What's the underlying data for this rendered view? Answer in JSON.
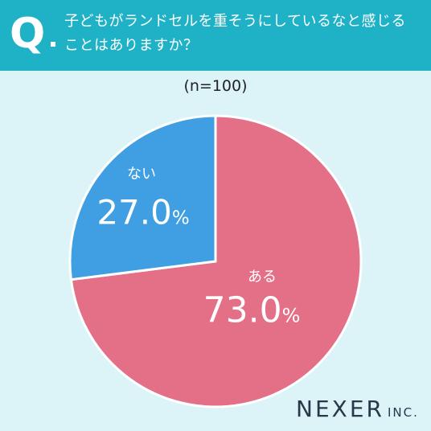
{
  "header": {
    "q_mark": "Q",
    "question_line1": "子どもがランドセルを重そうにしているなと感じる",
    "question_line2": "ことはありますか？"
  },
  "sample_label": "(n=100)",
  "colors": {
    "header_bg": "#1fb2c6",
    "page_bg": "#dcf3f8",
    "aru": "#e47088",
    "nai": "#3f9fe2"
  },
  "logo": {
    "main": "NEXER",
    "suffix": "INC."
  },
  "chart_data": {
    "type": "pie",
    "title": "子どもがランドセルを重そうにしているなと感じることはありますか？",
    "categories": [
      "ある",
      "ない"
    ],
    "values": [
      73.0,
      27.0
    ],
    "labels": [
      "73.0%",
      "27.0%"
    ],
    "unit": "%",
    "sample_size": "(n=100)"
  }
}
